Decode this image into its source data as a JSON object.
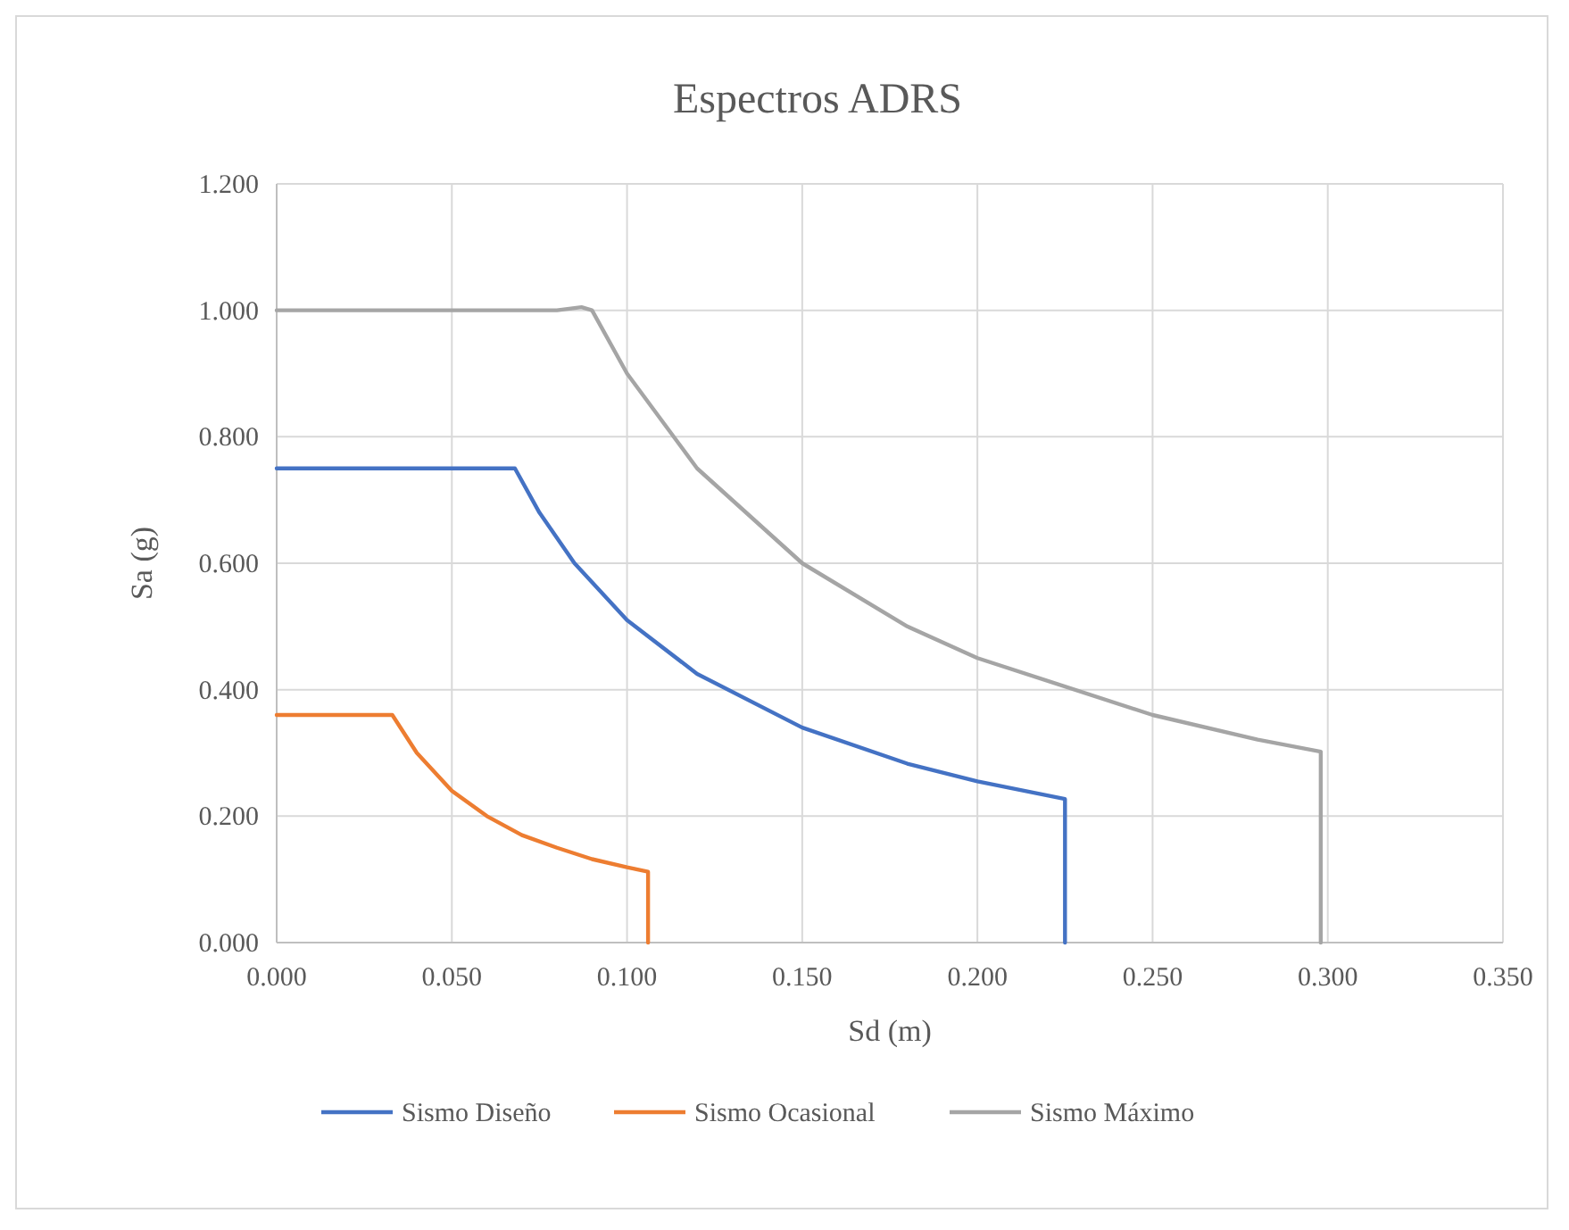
{
  "chart_data": {
    "type": "line",
    "title": "Espectros ADRS",
    "xlabel": "Sd (m)",
    "ylabel": "Sa (g)",
    "xlim": [
      0,
      0.35
    ],
    "xticks": [
      {
        "value": 0,
        "label": "0.000"
      },
      {
        "value": 0.05,
        "label": "0.050"
      },
      {
        "value": 0.1,
        "label": "0.100"
      },
      {
        "value": 0.15,
        "label": "0.150"
      },
      {
        "value": 0.2,
        "label": "0.200"
      },
      {
        "value": 0.25,
        "label": "0.250"
      },
      {
        "value": 0.3,
        "label": "0.300"
      },
      {
        "value": 0.35,
        "label": "0.350"
      }
    ],
    "ylim": [
      0,
      1.2
    ],
    "yticks": [
      {
        "value": 0,
        "label": "0.000"
      },
      {
        "value": 0.2,
        "label": "0.200"
      },
      {
        "value": 0.4,
        "label": "0.400"
      },
      {
        "value": 0.6,
        "label": "0.600"
      },
      {
        "value": 0.8,
        "label": "0.800"
      },
      {
        "value": 1,
        "label": "1.000"
      },
      {
        "value": 1.2,
        "label": "1.200"
      }
    ],
    "grid": true,
    "legend": "bottom",
    "marker": "none",
    "line_style": "solid",
    "series": [
      {
        "name": "Sismo Diseño",
        "color": "#4472c4",
        "x": [
          0,
          0.065,
          0.068,
          0.075,
          0.085,
          0.1,
          0.12,
          0.15,
          0.18,
          0.2,
          0.225,
          0.225
        ],
        "values": [
          0.75,
          0.75,
          0.75,
          0.68,
          0.6,
          0.51,
          0.425,
          0.34,
          0.283,
          0.255,
          0.227,
          0
        ]
      },
      {
        "name": "Sismo Ocasional",
        "color": "#ed7d31",
        "x": [
          0,
          0.033,
          0.04,
          0.05,
          0.06,
          0.07,
          0.08,
          0.09,
          0.1,
          0.106,
          0.106
        ],
        "values": [
          0.36,
          0.36,
          0.3,
          0.24,
          0.2,
          0.17,
          0.15,
          0.132,
          0.119,
          0.112,
          0
        ]
      },
      {
        "name": "Sismo Máximo",
        "color": "#a5a5a5",
        "x": [
          0,
          0.08,
          0.087,
          0.09,
          0.1,
          0.12,
          0.15,
          0.18,
          0.2,
          0.25,
          0.28,
          0.298,
          0.298
        ],
        "values": [
          1,
          1,
          1.005,
          1,
          0.9,
          0.75,
          0.6,
          0.5,
          0.45,
          0.36,
          0.321,
          0.302,
          0
        ]
      }
    ]
  }
}
